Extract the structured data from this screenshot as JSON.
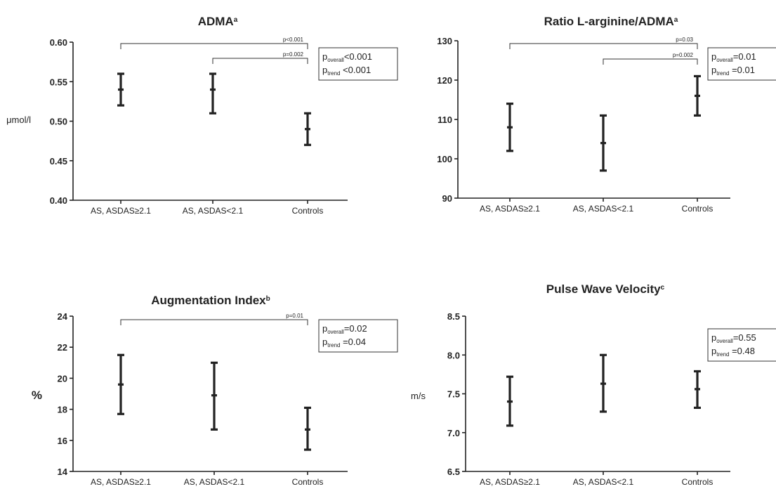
{
  "chart_data": [
    {
      "type": "errorbar",
      "title": "ADMA",
      "title_sup": "a",
      "ylabel": "μmol/l",
      "ylim": [
        0.4,
        0.6
      ],
      "yticks": [
        "0.40",
        "0.45",
        "0.50",
        "0.55",
        "0.60"
      ],
      "categories": [
        "AS, ASDAS≥2.1",
        "AS, ASDAS<2.1",
        "Controls"
      ],
      "mean": [
        0.54,
        0.54,
        0.49
      ],
      "lower": [
        0.52,
        0.51,
        0.47
      ],
      "upper": [
        0.56,
        0.56,
        0.51
      ],
      "comparisons": [
        {
          "from": 0,
          "to": 2,
          "label": "p<0.001"
        },
        {
          "from": 1,
          "to": 2,
          "label": "p=0.002"
        }
      ],
      "pbox": [
        {
          "p": "p",
          "sub": "overall",
          "val": "<0.001"
        },
        {
          "p": "p",
          "sub": "trend",
          "val": " <0.001"
        }
      ]
    },
    {
      "type": "errorbar",
      "title": "Ratio L-arginine/ADMA",
      "title_sup": "a",
      "ylabel": "",
      "ylim": [
        90,
        130
      ],
      "yticks": [
        "90",
        "100",
        "110",
        "120",
        "130"
      ],
      "categories": [
        "AS, ASDAS≥2.1",
        "AS, ASDAS<2.1",
        "Controls"
      ],
      "mean": [
        108,
        104,
        116
      ],
      "lower": [
        102,
        97,
        111
      ],
      "upper": [
        114,
        111,
        121
      ],
      "comparisons": [
        {
          "from": 0,
          "to": 2,
          "label": "p=0.03"
        },
        {
          "from": 1,
          "to": 2,
          "label": "p=0.002"
        }
      ],
      "pbox": [
        {
          "p": "p",
          "sub": "overall",
          "val": "=0.01"
        },
        {
          "p": "p",
          "sub": "trend",
          "val": " =0.01"
        }
      ]
    },
    {
      "type": "errorbar",
      "title": "Augmentation Index",
      "title_sup": "b",
      "ylabel": "%",
      "ylim": [
        14,
        24
      ],
      "yticks": [
        "14",
        "16",
        "18",
        "20",
        "22",
        "24"
      ],
      "categories": [
        "AS, ASDAS≥2.1",
        "AS, ASDAS<2.1",
        "Controls"
      ],
      "mean": [
        19.6,
        18.9,
        16.7
      ],
      "lower": [
        17.7,
        16.7,
        15.4
      ],
      "upper": [
        21.5,
        21.0,
        18.1
      ],
      "comparisons": [
        {
          "from": 0,
          "to": 2,
          "label": "p=0.01"
        }
      ],
      "pbox": [
        {
          "p": "p",
          "sub": "overall",
          "val": "=0.02"
        },
        {
          "p": "p",
          "sub": "trend",
          "val": " =0.04"
        }
      ]
    },
    {
      "type": "errorbar",
      "title": "Pulse Wave Velocity",
      "title_sup": "c",
      "ylabel": "m/s",
      "ylim": [
        6.5,
        8.5
      ],
      "yticks": [
        "6.5",
        "7.0",
        "7.5",
        "8.0",
        "8.5"
      ],
      "categories": [
        "AS, ASDAS≥2.1",
        "AS, ASDAS<2.1",
        "Controls"
      ],
      "mean": [
        7.4,
        7.63,
        7.56
      ],
      "lower": [
        7.09,
        7.27,
        7.32
      ],
      "upper": [
        7.72,
        8.0,
        7.79
      ],
      "comparisons": [],
      "pbox": [
        {
          "p": "p",
          "sub": "overall",
          "val": "=0.55"
        },
        {
          "p": "p",
          "sub": "trend",
          "val": " =0.48"
        }
      ]
    }
  ]
}
